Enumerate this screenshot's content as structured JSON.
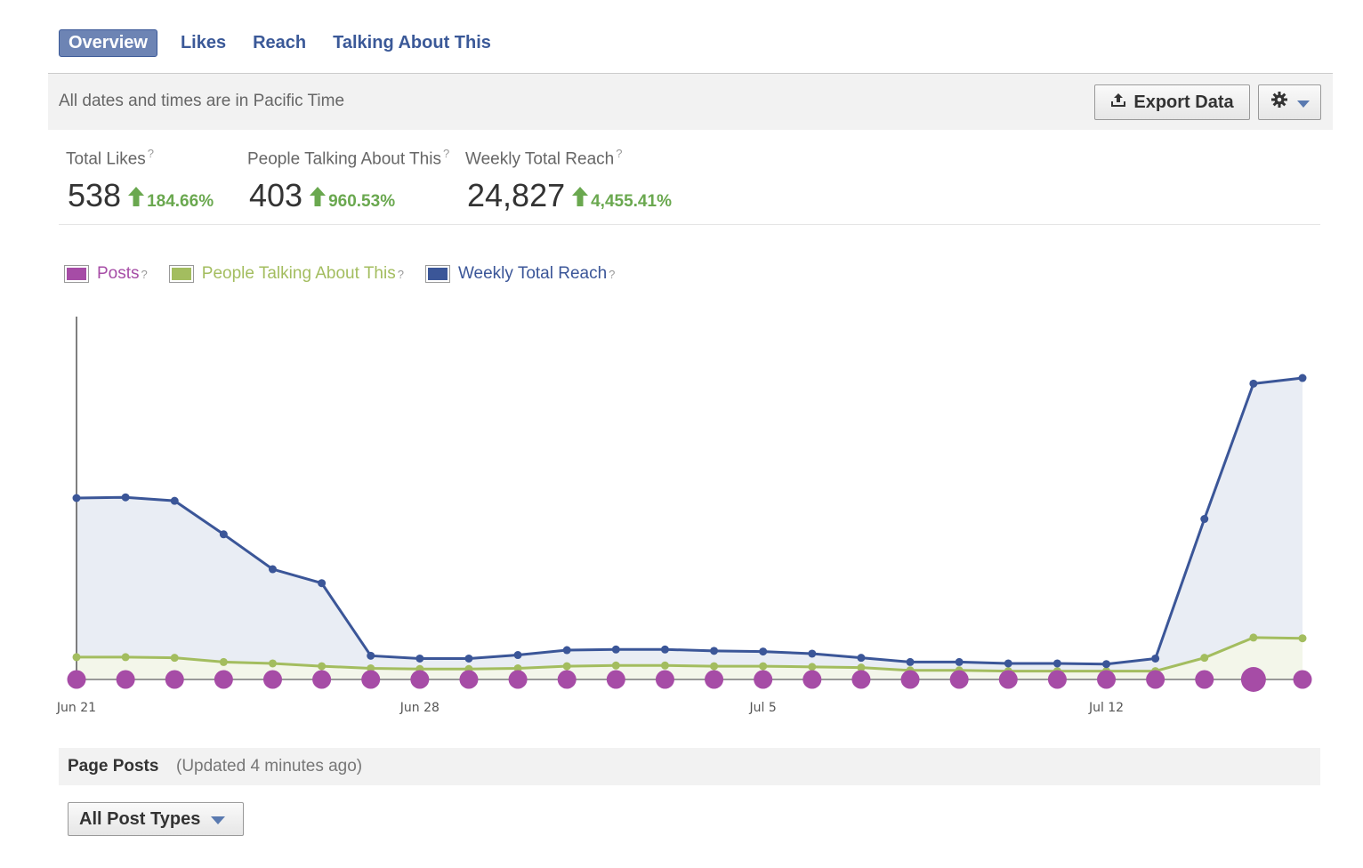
{
  "tabs": [
    {
      "label": "Overview",
      "active": true
    },
    {
      "label": "Likes",
      "active": false
    },
    {
      "label": "Reach",
      "active": false
    },
    {
      "label": "Talking About This",
      "active": false
    }
  ],
  "infobar": {
    "timezone_note": "All dates and times are in Pacific Time",
    "export_label": "Export Data",
    "export_icon": "upload-icon",
    "settings_icon": "gear-icon"
  },
  "kpis": [
    {
      "label": "Total Likes",
      "help": "?",
      "value": "538",
      "change": "184.66%",
      "direction": "up"
    },
    {
      "label": "People Talking About This",
      "help": "?",
      "value": "403",
      "change": "960.53%",
      "direction": "up"
    },
    {
      "label": "Weekly Total Reach",
      "help": "?",
      "value": "24,827",
      "change": "4,455.41%",
      "direction": "up"
    }
  ],
  "colors": {
    "brand": "#3b5998",
    "tab_active_bg": "#6d84b4",
    "positive": "#6aa84f",
    "posts": "#a64ca6",
    "talking": "#a3bd5f",
    "reach": "#3b5698",
    "reach_fill": "#e9edf4",
    "talking_fill": "#f3f6ea"
  },
  "legend": [
    {
      "label": "Posts",
      "help": "?",
      "color": "#a64ca6",
      "text_color": "#a64ca6"
    },
    {
      "label": "People Talking About This",
      "help": "?",
      "color": "#a3bd5f",
      "text_color": "#a3bd5f"
    },
    {
      "label": "Weekly Total Reach",
      "help": "?",
      "color": "#3b5698",
      "text_color": "#3b5698"
    }
  ],
  "chart_data": {
    "type": "line",
    "x": [
      "Jun 21",
      "Jun 22",
      "Jun 23",
      "Jun 24",
      "Jun 25",
      "Jun 26",
      "Jun 27",
      "Jun 28",
      "Jun 29",
      "Jun 30",
      "Jul 1",
      "Jul 2",
      "Jul 3",
      "Jul 4",
      "Jul 5",
      "Jul 6",
      "Jul 7",
      "Jul 8",
      "Jul 9",
      "Jul 10",
      "Jul 11",
      "Jul 12",
      "Jul 13",
      "Jul 14",
      "Jul 15",
      "Jul 16"
    ],
    "x_tick_labels": [
      "Jun 21",
      "Jun 28",
      "Jul 5",
      "Jul 12"
    ],
    "x_tick_indices": [
      0,
      7,
      14,
      21
    ],
    "ylim": [
      0,
      26000
    ],
    "grid": false,
    "legend_position": "top-left",
    "series": [
      {
        "name": "Weekly Total Reach",
        "values": [
          13000,
          13050,
          12800,
          10400,
          7900,
          6900,
          1700,
          1500,
          1500,
          1750,
          2100,
          2150,
          2150,
          2050,
          2000,
          1850,
          1550,
          1250,
          1250,
          1150,
          1150,
          1100,
          1500,
          11500,
          21200,
          21600
        ]
      },
      {
        "name": "People Talking About This",
        "values": [
          1600,
          1600,
          1550,
          1250,
          1150,
          950,
          800,
          750,
          750,
          800,
          950,
          1000,
          1000,
          950,
          950,
          900,
          850,
          650,
          650,
          600,
          600,
          600,
          600,
          1550,
          3000,
          2950
        ]
      },
      {
        "name": "Posts",
        "values": [
          1,
          1,
          1,
          1,
          1,
          1,
          1,
          1,
          1,
          1,
          1,
          1,
          1,
          1,
          1,
          1,
          1,
          1,
          1,
          1,
          1,
          1,
          1,
          1,
          2,
          1
        ]
      }
    ]
  },
  "page_posts": {
    "title": "Page Posts",
    "updated": "(Updated 4 minutes ago)"
  },
  "filter": {
    "selected": "All Post Types"
  }
}
